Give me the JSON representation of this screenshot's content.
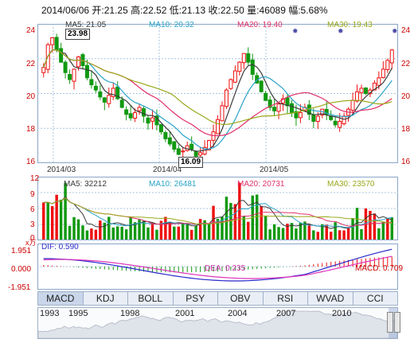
{
  "header": "2014/06/06 开:21.25  高:22.52  低:21.13  收:22.50  量:46089  幅:5.68%",
  "price_legend": [
    {
      "text": "MA5: 21.05",
      "color": "#3a3a3a"
    },
    {
      "text": "MA10: 20.32",
      "color": "#2aa3c8"
    },
    {
      "text": "MA20: 19.40",
      "color": "#e0306a"
    },
    {
      "text": "MA30: 19.43",
      "color": "#9aa81a"
    }
  ],
  "vol_legend": [
    {
      "text": "MA5: 32212",
      "color": "#3a3a3a"
    },
    {
      "text": "MA10: 26481",
      "color": "#2aa3c8"
    },
    {
      "text": "MA20: 20731",
      "color": "#e0306a"
    },
    {
      "text": "MA30: 23570",
      "color": "#9aa81a"
    }
  ],
  "price_axis": [
    "24",
    "22",
    "20",
    "18",
    "16"
  ],
  "vol_axis": [
    "12",
    "9",
    "6",
    "3",
    "0"
  ],
  "vol_unit": "x万",
  "macd_axis": [
    "1.951",
    "0.000",
    "-1.951"
  ],
  "date_ticks": [
    "2014/03",
    "2014/04",
    "2014/05"
  ],
  "flags": {
    "high": "23.98",
    "low": "16.09"
  },
  "macd_labels": {
    "dif": "DIF: 0.590",
    "dea": "DEA: 0.235",
    "macd": "MACD: 0.709"
  },
  "tabs": [
    "MACD",
    "KDJ",
    "BOLL",
    "PSY",
    "OBV",
    "RSI",
    "WVAD",
    "CCI"
  ],
  "years": [
    "1993",
    "1995",
    "1998",
    "2001",
    "2004",
    "2007",
    "2010"
  ],
  "colors": {
    "up": "#ee1111",
    "down": "#119911",
    "grid": "#aac4de",
    "frame": "#8aa6c8"
  }
}
